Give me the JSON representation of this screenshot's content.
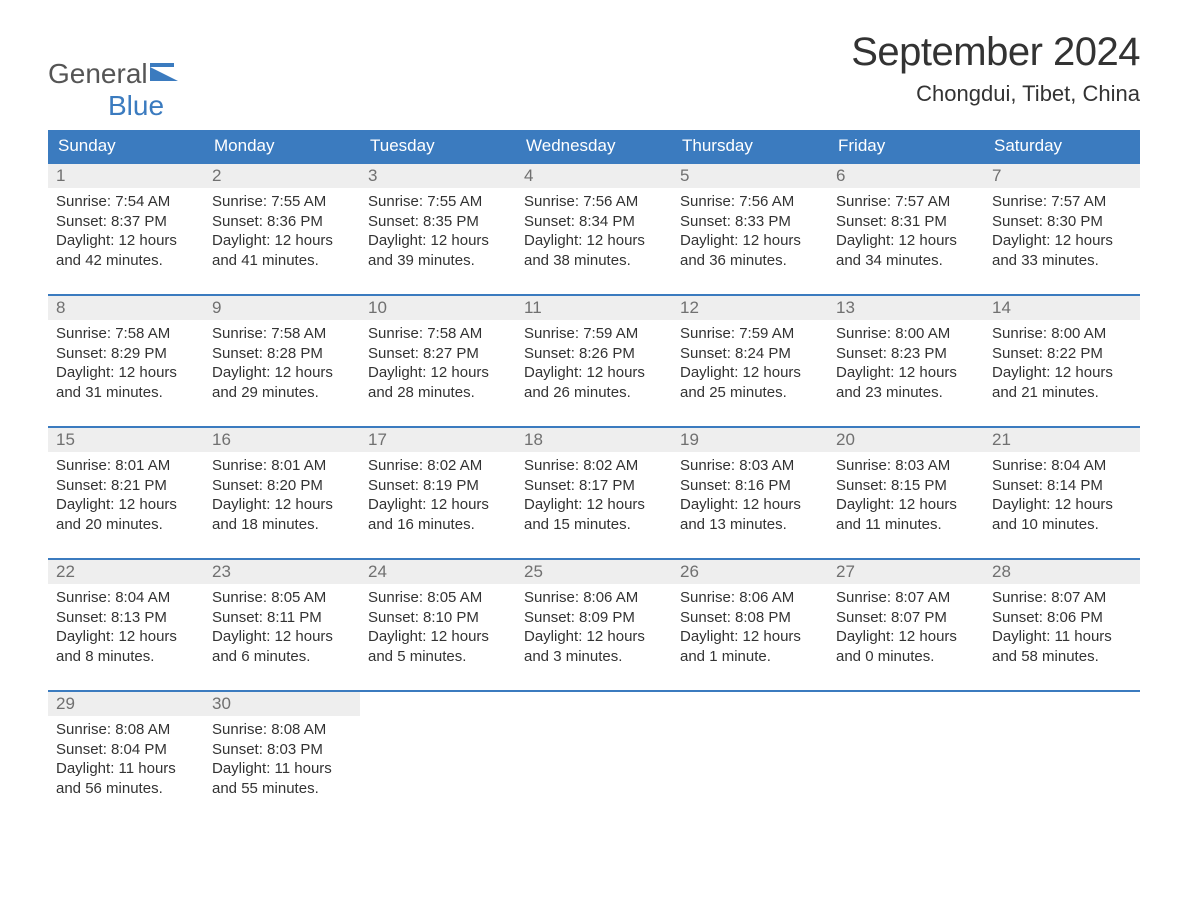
{
  "brand": {
    "part1": "General",
    "part2": "Blue"
  },
  "title": {
    "month": "September 2024",
    "location": "Chongdui, Tibet, China"
  },
  "colors": {
    "header_bg": "#3b7bbf",
    "daybar_bg": "#eeeeee",
    "text": "#333333",
    "muted": "#707070",
    "white": "#ffffff"
  },
  "weekdays": [
    "Sunday",
    "Monday",
    "Tuesday",
    "Wednesday",
    "Thursday",
    "Friday",
    "Saturday"
  ],
  "weeks": [
    [
      {
        "day": "1",
        "sunrise": "Sunrise: 7:54 AM",
        "sunset": "Sunset: 8:37 PM",
        "daylight1": "Daylight: 12 hours",
        "daylight2": "and 42 minutes."
      },
      {
        "day": "2",
        "sunrise": "Sunrise: 7:55 AM",
        "sunset": "Sunset: 8:36 PM",
        "daylight1": "Daylight: 12 hours",
        "daylight2": "and 41 minutes."
      },
      {
        "day": "3",
        "sunrise": "Sunrise: 7:55 AM",
        "sunset": "Sunset: 8:35 PM",
        "daylight1": "Daylight: 12 hours",
        "daylight2": "and 39 minutes."
      },
      {
        "day": "4",
        "sunrise": "Sunrise: 7:56 AM",
        "sunset": "Sunset: 8:34 PM",
        "daylight1": "Daylight: 12 hours",
        "daylight2": "and 38 minutes."
      },
      {
        "day": "5",
        "sunrise": "Sunrise: 7:56 AM",
        "sunset": "Sunset: 8:33 PM",
        "daylight1": "Daylight: 12 hours",
        "daylight2": "and 36 minutes."
      },
      {
        "day": "6",
        "sunrise": "Sunrise: 7:57 AM",
        "sunset": "Sunset: 8:31 PM",
        "daylight1": "Daylight: 12 hours",
        "daylight2": "and 34 minutes."
      },
      {
        "day": "7",
        "sunrise": "Sunrise: 7:57 AM",
        "sunset": "Sunset: 8:30 PM",
        "daylight1": "Daylight: 12 hours",
        "daylight2": "and 33 minutes."
      }
    ],
    [
      {
        "day": "8",
        "sunrise": "Sunrise: 7:58 AM",
        "sunset": "Sunset: 8:29 PM",
        "daylight1": "Daylight: 12 hours",
        "daylight2": "and 31 minutes."
      },
      {
        "day": "9",
        "sunrise": "Sunrise: 7:58 AM",
        "sunset": "Sunset: 8:28 PM",
        "daylight1": "Daylight: 12 hours",
        "daylight2": "and 29 minutes."
      },
      {
        "day": "10",
        "sunrise": "Sunrise: 7:58 AM",
        "sunset": "Sunset: 8:27 PM",
        "daylight1": "Daylight: 12 hours",
        "daylight2": "and 28 minutes."
      },
      {
        "day": "11",
        "sunrise": "Sunrise: 7:59 AM",
        "sunset": "Sunset: 8:26 PM",
        "daylight1": "Daylight: 12 hours",
        "daylight2": "and 26 minutes."
      },
      {
        "day": "12",
        "sunrise": "Sunrise: 7:59 AM",
        "sunset": "Sunset: 8:24 PM",
        "daylight1": "Daylight: 12 hours",
        "daylight2": "and 25 minutes."
      },
      {
        "day": "13",
        "sunrise": "Sunrise: 8:00 AM",
        "sunset": "Sunset: 8:23 PM",
        "daylight1": "Daylight: 12 hours",
        "daylight2": "and 23 minutes."
      },
      {
        "day": "14",
        "sunrise": "Sunrise: 8:00 AM",
        "sunset": "Sunset: 8:22 PM",
        "daylight1": "Daylight: 12 hours",
        "daylight2": "and 21 minutes."
      }
    ],
    [
      {
        "day": "15",
        "sunrise": "Sunrise: 8:01 AM",
        "sunset": "Sunset: 8:21 PM",
        "daylight1": "Daylight: 12 hours",
        "daylight2": "and 20 minutes."
      },
      {
        "day": "16",
        "sunrise": "Sunrise: 8:01 AM",
        "sunset": "Sunset: 8:20 PM",
        "daylight1": "Daylight: 12 hours",
        "daylight2": "and 18 minutes."
      },
      {
        "day": "17",
        "sunrise": "Sunrise: 8:02 AM",
        "sunset": "Sunset: 8:19 PM",
        "daylight1": "Daylight: 12 hours",
        "daylight2": "and 16 minutes."
      },
      {
        "day": "18",
        "sunrise": "Sunrise: 8:02 AM",
        "sunset": "Sunset: 8:17 PM",
        "daylight1": "Daylight: 12 hours",
        "daylight2": "and 15 minutes."
      },
      {
        "day": "19",
        "sunrise": "Sunrise: 8:03 AM",
        "sunset": "Sunset: 8:16 PM",
        "daylight1": "Daylight: 12 hours",
        "daylight2": "and 13 minutes."
      },
      {
        "day": "20",
        "sunrise": "Sunrise: 8:03 AM",
        "sunset": "Sunset: 8:15 PM",
        "daylight1": "Daylight: 12 hours",
        "daylight2": "and 11 minutes."
      },
      {
        "day": "21",
        "sunrise": "Sunrise: 8:04 AM",
        "sunset": "Sunset: 8:14 PM",
        "daylight1": "Daylight: 12 hours",
        "daylight2": "and 10 minutes."
      }
    ],
    [
      {
        "day": "22",
        "sunrise": "Sunrise: 8:04 AM",
        "sunset": "Sunset: 8:13 PM",
        "daylight1": "Daylight: 12 hours",
        "daylight2": "and 8 minutes."
      },
      {
        "day": "23",
        "sunrise": "Sunrise: 8:05 AM",
        "sunset": "Sunset: 8:11 PM",
        "daylight1": "Daylight: 12 hours",
        "daylight2": "and 6 minutes."
      },
      {
        "day": "24",
        "sunrise": "Sunrise: 8:05 AM",
        "sunset": "Sunset: 8:10 PM",
        "daylight1": "Daylight: 12 hours",
        "daylight2": "and 5 minutes."
      },
      {
        "day": "25",
        "sunrise": "Sunrise: 8:06 AM",
        "sunset": "Sunset: 8:09 PM",
        "daylight1": "Daylight: 12 hours",
        "daylight2": "and 3 minutes."
      },
      {
        "day": "26",
        "sunrise": "Sunrise: 8:06 AM",
        "sunset": "Sunset: 8:08 PM",
        "daylight1": "Daylight: 12 hours",
        "daylight2": "and 1 minute."
      },
      {
        "day": "27",
        "sunrise": "Sunrise: 8:07 AM",
        "sunset": "Sunset: 8:07 PM",
        "daylight1": "Daylight: 12 hours",
        "daylight2": "and 0 minutes."
      },
      {
        "day": "28",
        "sunrise": "Sunrise: 8:07 AM",
        "sunset": "Sunset: 8:06 PM",
        "daylight1": "Daylight: 11 hours",
        "daylight2": "and 58 minutes."
      }
    ],
    [
      {
        "day": "29",
        "sunrise": "Sunrise: 8:08 AM",
        "sunset": "Sunset: 8:04 PM",
        "daylight1": "Daylight: 11 hours",
        "daylight2": "and 56 minutes."
      },
      {
        "day": "30",
        "sunrise": "Sunrise: 8:08 AM",
        "sunset": "Sunset: 8:03 PM",
        "daylight1": "Daylight: 11 hours",
        "daylight2": "and 55 minutes."
      },
      {
        "empty": true
      },
      {
        "empty": true
      },
      {
        "empty": true
      },
      {
        "empty": true
      },
      {
        "empty": true
      }
    ]
  ]
}
